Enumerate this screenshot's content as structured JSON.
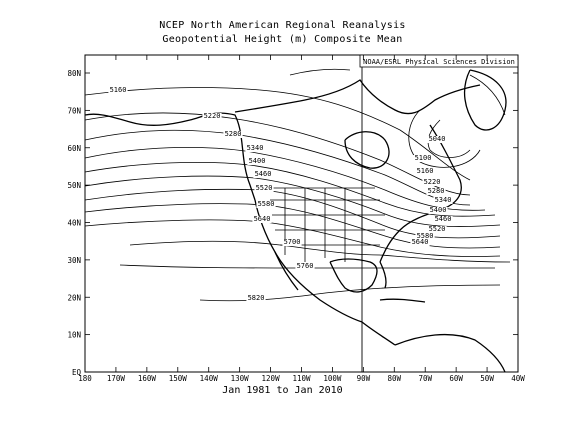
{
  "title": "NCEP North American Regional Reanalysis",
  "subtitle": "Geopotential Height (m) Composite Mean",
  "credit": "NOAA/ESRL Physical Sciences Division",
  "date_range": "Jan 1981 to Jan 2010",
  "lat_labels": [
    "80N",
    "70N",
    "60N",
    "50N",
    "40N",
    "30N",
    "20N",
    "10N",
    "EQ"
  ],
  "lon_labels": [
    "180",
    "170W",
    "160W",
    "150W",
    "140W",
    "130W",
    "120W",
    "110W",
    "100W",
    "90W",
    "80W",
    "70W",
    "60W",
    "50W",
    "40W"
  ],
  "contour_labels": [
    "5160",
    "5220",
    "5280",
    "5340",
    "5400",
    "5460",
    "5520",
    "5580",
    "5640",
    "5700",
    "5760",
    "5820",
    "5040",
    "5100",
    "5160",
    "5220",
    "5280",
    "5340",
    "5400",
    "5460",
    "5520",
    "5580",
    "5640"
  ],
  "colors": {
    "line": "#000000",
    "background": "#ffffff"
  }
}
